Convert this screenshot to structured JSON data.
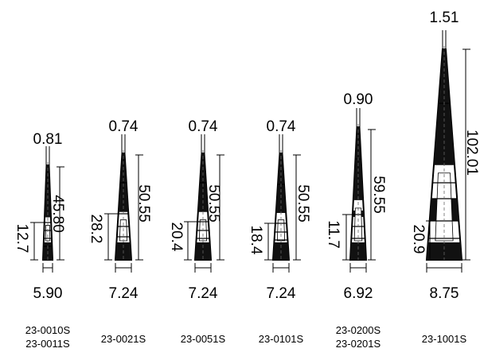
{
  "tips": [
    {
      "id": "tip-1",
      "top_diameter": "0.81",
      "length": "45.80",
      "lower_length": "12.7",
      "bottom_width": "5.90",
      "codes": [
        "23-0010S",
        "23-0011S"
      ]
    },
    {
      "id": "tip-2",
      "top_diameter": "0.74",
      "length": "50.55",
      "lower_length": "28.2",
      "bottom_width": "7.24",
      "codes": [
        "23-0021S"
      ]
    },
    {
      "id": "tip-3",
      "top_diameter": "0.74",
      "length": "50.55",
      "lower_length": "20.4",
      "bottom_width": "7.24",
      "codes": [
        "23-0051S"
      ]
    },
    {
      "id": "tip-4",
      "top_diameter": "0.74",
      "length": "50.55",
      "lower_length": "18.4",
      "bottom_width": "7.24",
      "codes": [
        "23-0101S"
      ]
    },
    {
      "id": "tip-5",
      "top_diameter": "0.90",
      "length": "59.55",
      "lower_length": "11.7",
      "bottom_width": "6.92",
      "codes": [
        "23-0200S",
        "23-0201S"
      ]
    },
    {
      "id": "tip-6",
      "top_diameter": "1.51",
      "length": "102.01",
      "lower_length": "20.9",
      "bottom_width": "8.75",
      "codes": [
        "23-1001S"
      ]
    }
  ]
}
